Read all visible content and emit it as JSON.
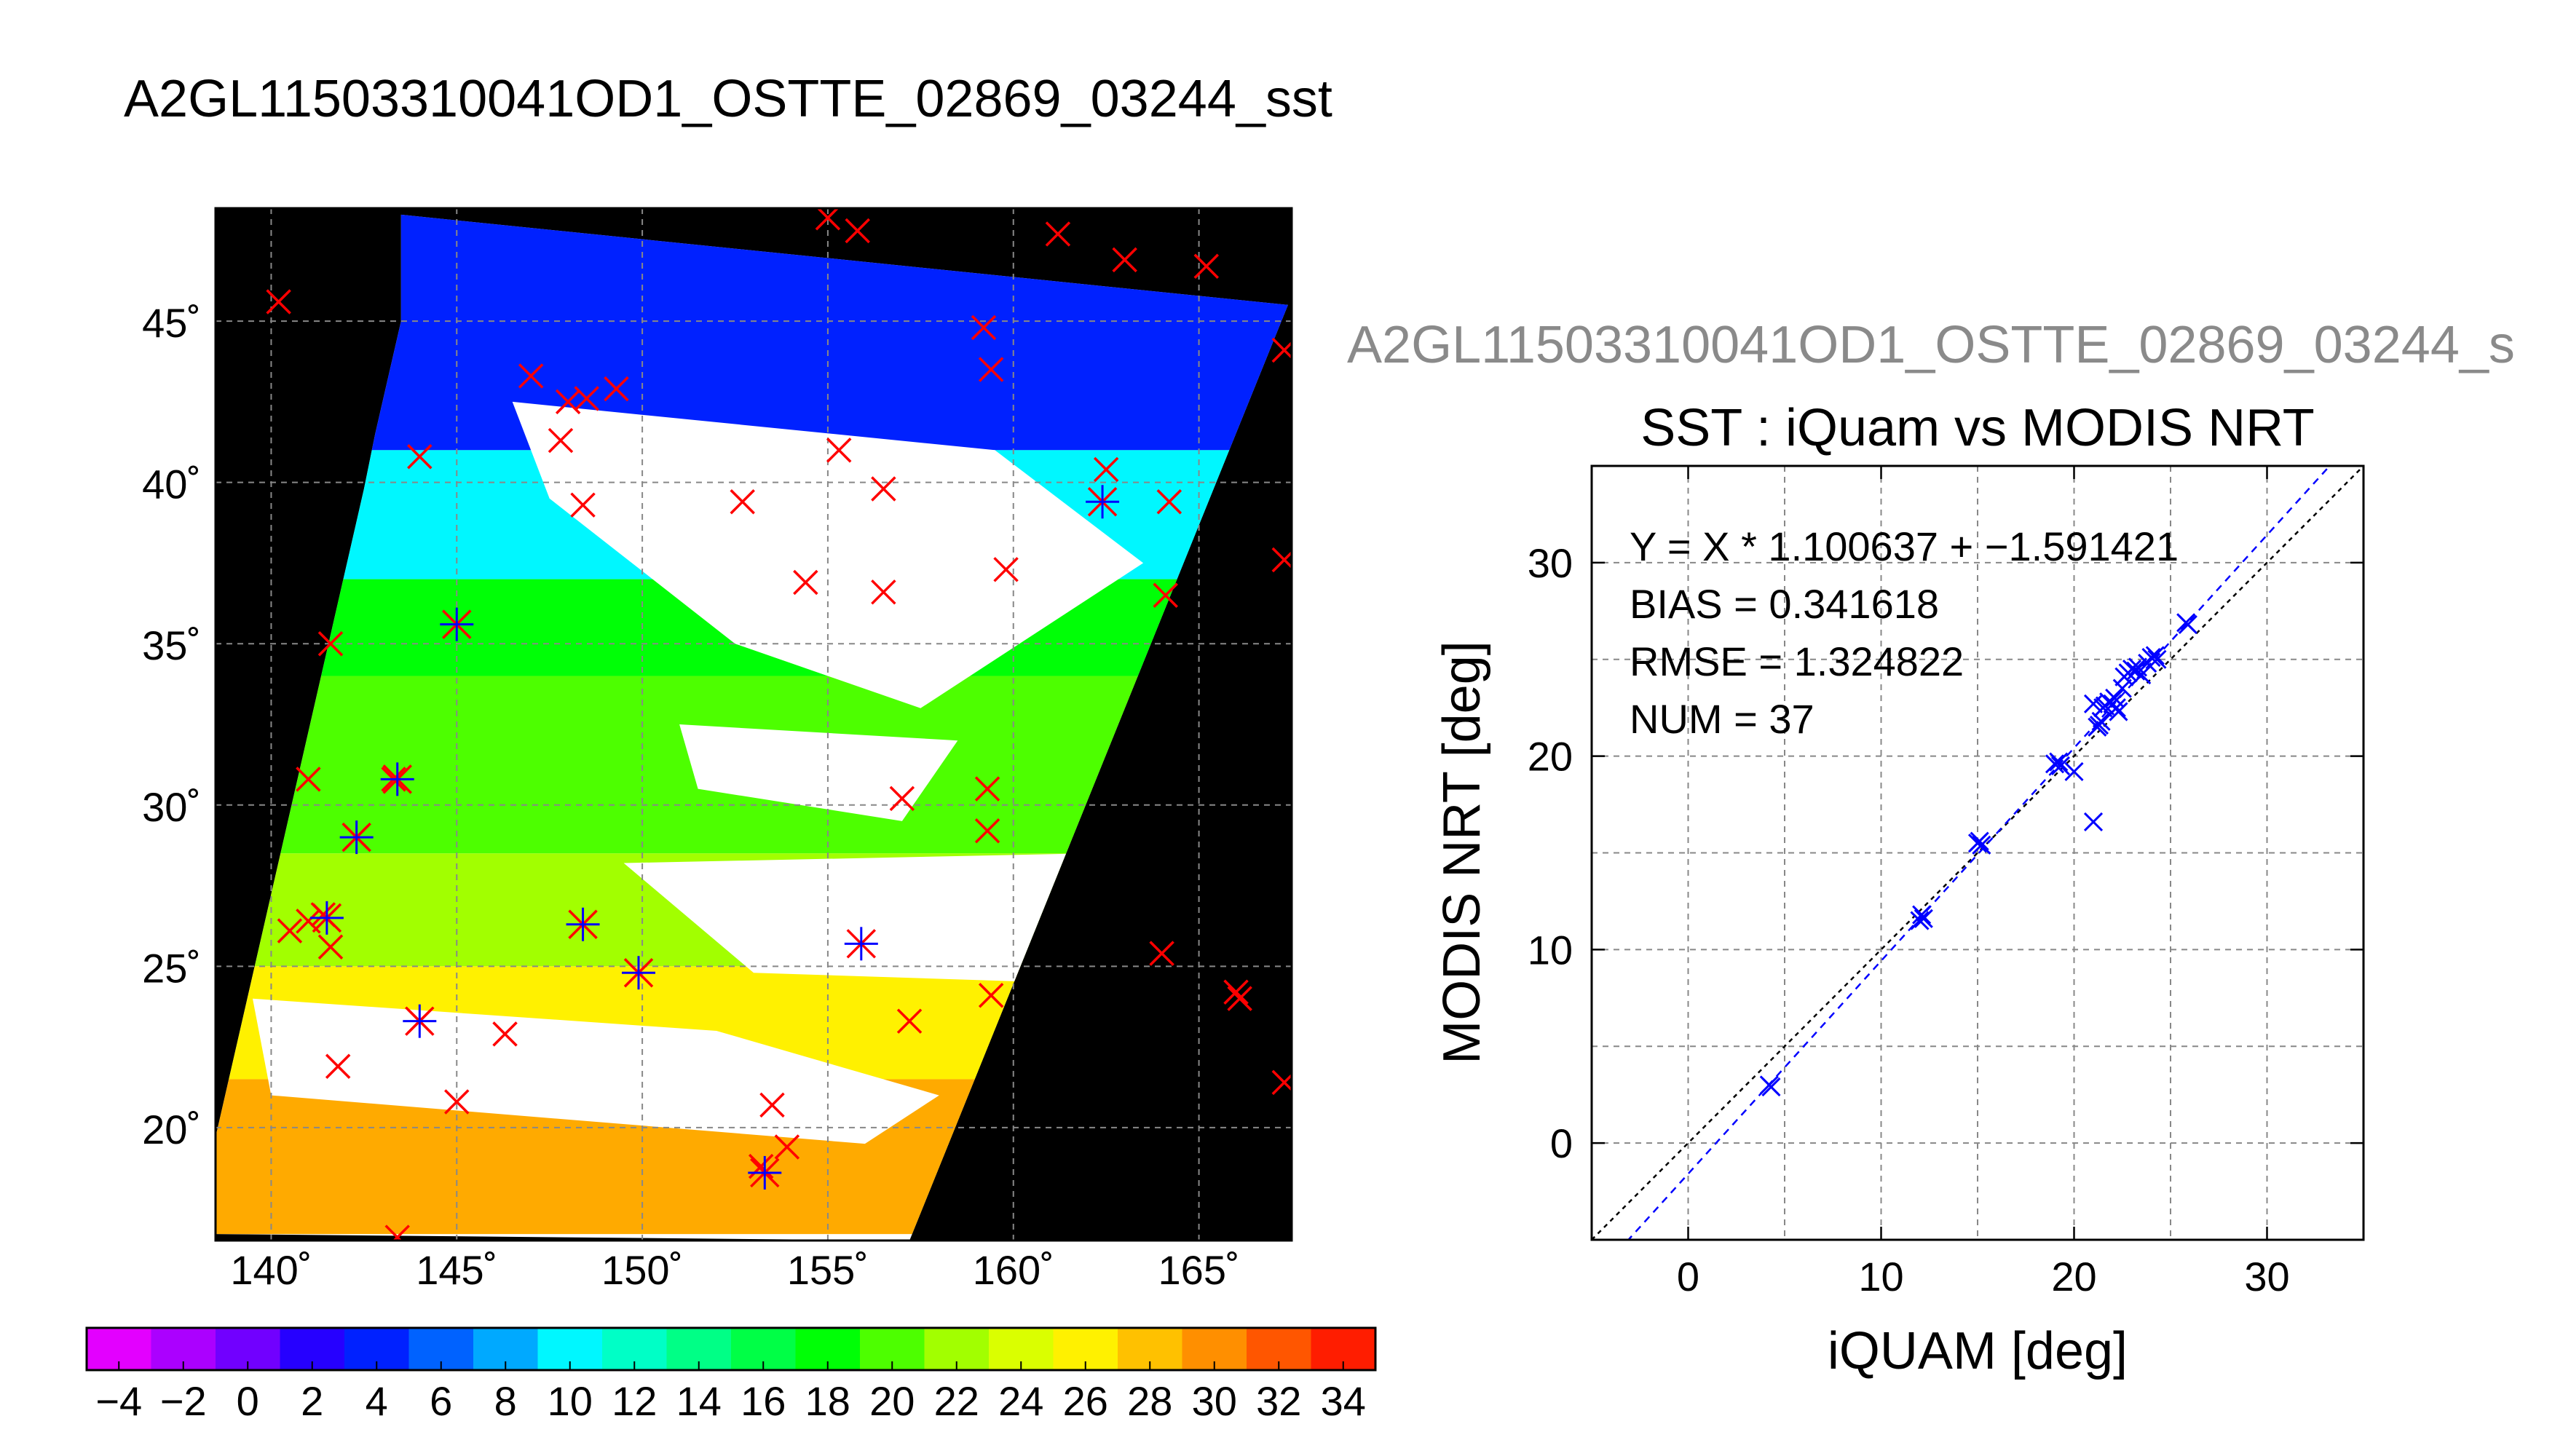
{
  "page_title": "A2GL11503310041OD1_OSTTE_02869_03244_sst",
  "colors": {
    "match_marker": "#ff0000",
    "match_cross": "#0000ff",
    "bar_outline": "#000000"
  },
  "map": {
    "lat_ticks": [
      "20˚",
      "25˚",
      "30˚",
      "35˚",
      "40˚",
      "45˚"
    ],
    "lon_ticks": [
      "140˚",
      "145˚",
      "150˚",
      "155˚",
      "160˚",
      "165˚"
    ],
    "lon_range": [
      138.5,
      167.5
    ],
    "lat_range": [
      16.5,
      48.5
    ],
    "swath_corners_lonlat": [
      [
        143.5,
        48.3
      ],
      [
        167.4,
        45.5
      ],
      [
        157.2,
        16.5
      ],
      [
        138.5,
        16.7
      ],
      [
        138.5,
        19.7
      ],
      [
        142.5,
        39.8
      ],
      [
        142.8,
        41.5
      ],
      [
        143.5,
        45.0
      ]
    ],
    "sst_bands": [
      {
        "lat_from": 41.0,
        "lat_to": 48.3,
        "sst": 4
      },
      {
        "lat_from": 37.0,
        "lat_to": 41.0,
        "sst": 10
      },
      {
        "lat_from": 34.0,
        "lat_to": 37.0,
        "sst": 18
      },
      {
        "lat_from": 28.5,
        "lat_to": 34.0,
        "sst": 20
      },
      {
        "lat_from": 25.0,
        "lat_to": 28.5,
        "sst": 22
      },
      {
        "lat_from": 21.5,
        "lat_to": 25.0,
        "sst": 26
      },
      {
        "lat_from": 16.7,
        "lat_to": 21.5,
        "sst": 29
      }
    ],
    "cloud_patches_lonlat": [
      [
        [
          146.5,
          42.5
        ],
        [
          159.5,
          41.0
        ],
        [
          163.5,
          37.5
        ],
        [
          157.5,
          33.0
        ],
        [
          152.5,
          35.0
        ],
        [
          147.5,
          39.5
        ]
      ],
      [
        [
          149.5,
          28.2
        ],
        [
          162.0,
          28.5
        ],
        [
          161.0,
          24.5
        ],
        [
          153.0,
          24.8
        ]
      ],
      [
        [
          139.5,
          24.0
        ],
        [
          152.0,
          23.0
        ],
        [
          158.0,
          21.0
        ],
        [
          156.0,
          19.5
        ],
        [
          140.0,
          21.0
        ]
      ],
      [
        [
          151.0,
          32.5
        ],
        [
          158.5,
          32.0
        ],
        [
          157.0,
          29.5
        ],
        [
          151.5,
          30.5
        ]
      ]
    ],
    "buoy_marks_lonlat": [
      [
        140.2,
        45.6
      ],
      [
        155.0,
        48.2
      ],
      [
        155.8,
        47.8
      ],
      [
        161.2,
        47.7
      ],
      [
        163.0,
        46.9
      ],
      [
        165.2,
        46.7
      ],
      [
        167.3,
        44.1
      ],
      [
        159.2,
        44.8
      ],
      [
        159.4,
        43.5
      ],
      [
        147.0,
        43.3
      ],
      [
        148.0,
        42.5
      ],
      [
        148.5,
        42.6
      ],
      [
        149.3,
        42.9
      ],
      [
        147.8,
        41.3
      ],
      [
        155.3,
        41.0
      ],
      [
        144.0,
        40.8
      ],
      [
        152.7,
        39.4
      ],
      [
        156.5,
        39.8
      ],
      [
        162.5,
        40.4
      ],
      [
        164.2,
        39.4
      ],
      [
        148.4,
        39.3
      ],
      [
        167.3,
        37.6
      ],
      [
        159.8,
        37.3
      ],
      [
        154.4,
        36.9
      ],
      [
        156.5,
        36.6
      ],
      [
        164.1,
        36.5
      ],
      [
        141.6,
        35.0
      ],
      [
        157.0,
        30.2
      ],
      [
        159.3,
        30.5
      ],
      [
        159.3,
        29.2
      ],
      [
        142.3,
        29.0
      ],
      [
        141.0,
        30.8
      ],
      [
        143.3,
        30.8
      ],
      [
        140.5,
        26.1
      ],
      [
        141.0,
        26.4
      ],
      [
        141.4,
        26.6
      ],
      [
        141.6,
        25.6
      ],
      [
        164.0,
        25.4
      ],
      [
        159.4,
        24.1
      ],
      [
        166.1,
        24.0
      ],
      [
        166.0,
        24.2
      ],
      [
        157.2,
        23.3
      ],
      [
        146.3,
        22.9
      ],
      [
        144.0,
        23.3
      ],
      [
        141.8,
        21.9
      ],
      [
        167.3,
        21.4
      ],
      [
        145.0,
        20.8
      ],
      [
        153.5,
        20.7
      ],
      [
        153.9,
        19.4
      ],
      [
        153.2,
        18.8
      ],
      [
        143.4,
        16.6
      ]
    ],
    "match_stars_lonlat": [
      [
        145.0,
        35.6
      ],
      [
        162.4,
        39.4
      ],
      [
        141.5,
        26.5
      ],
      [
        142.3,
        29.0
      ],
      [
        143.4,
        30.8
      ],
      [
        148.4,
        26.3
      ],
      [
        155.9,
        25.7
      ],
      [
        149.9,
        24.8
      ],
      [
        144.0,
        23.3
      ],
      [
        153.3,
        18.6
      ]
    ]
  },
  "colorbar": {
    "min": -5,
    "max": 35,
    "segments": 20,
    "tick_labels": [
      "−4",
      "−2",
      "0",
      "2",
      "4",
      "6",
      "8",
      "10",
      "12",
      "14",
      "16",
      "18",
      "20",
      "22",
      "24",
      "26",
      "28",
      "30",
      "32",
      "34"
    ],
    "tick_values": [
      -4,
      -2,
      0,
      2,
      4,
      6,
      8,
      10,
      12,
      14,
      16,
      18,
      20,
      22,
      24,
      26,
      28,
      30,
      32,
      34
    ]
  },
  "chart_data": {
    "type": "scatter",
    "header": "A2GL11503310041OD1_OSTTE_02869_03244_s",
    "title": "SST : iQuam vs MODIS NRT",
    "xlabel": "iQUAM [deg]",
    "ylabel": "MODIS NRT [deg]",
    "xlim": [
      -5,
      35
    ],
    "ylim": [
      -5,
      35
    ],
    "x_ticks": [
      0,
      10,
      20,
      30
    ],
    "y_ticks": [
      0,
      10,
      20,
      30
    ],
    "grid": true,
    "stats": [
      "Y = X * 1.100637 + −1.591421",
      "BIAS = 0.341618",
      "RMSE = 1.324822",
      "NUM = 37"
    ],
    "fit": {
      "slope": 1.100637,
      "intercept": -1.591421
    },
    "series": [
      {
        "values": [
          [
            4.2,
            3.0
          ],
          [
            4.3,
            2.9
          ],
          [
            12.0,
            11.5
          ],
          [
            12.1,
            11.8
          ],
          [
            12.2,
            11.6
          ],
          [
            15.0,
            15.5
          ],
          [
            15.1,
            15.6
          ],
          [
            15.2,
            15.4
          ],
          [
            19.0,
            19.6
          ],
          [
            19.2,
            19.7
          ],
          [
            19.3,
            19.5
          ],
          [
            20.0,
            19.2
          ],
          [
            21.0,
            22.7
          ],
          [
            21.0,
            16.6
          ],
          [
            21.2,
            21.5
          ],
          [
            21.3,
            21.6
          ],
          [
            21.5,
            22.5
          ],
          [
            21.6,
            22.6
          ],
          [
            21.8,
            22.8
          ],
          [
            22.0,
            22.7
          ],
          [
            22.2,
            22.5
          ],
          [
            22.3,
            22.3
          ],
          [
            22.5,
            23.5
          ],
          [
            22.6,
            24.1
          ],
          [
            22.8,
            24.3
          ],
          [
            23.0,
            24.5
          ],
          [
            23.2,
            24.4
          ],
          [
            23.3,
            24.6
          ],
          [
            23.5,
            24.2
          ],
          [
            24.0,
            25.1
          ],
          [
            24.2,
            25.2
          ],
          [
            24.3,
            25.0
          ],
          [
            25.8,
            26.9
          ],
          [
            25.9,
            26.8
          ],
          [
            21.4,
            21.8
          ],
          [
            22.1,
            23.0
          ],
          [
            23.8,
            24.8
          ]
        ]
      }
    ]
  }
}
